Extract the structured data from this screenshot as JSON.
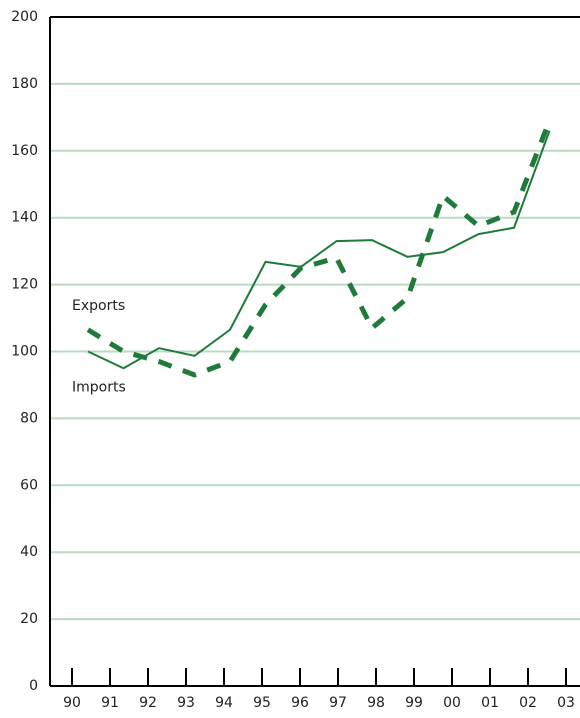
{
  "chart_data": {
    "type": "line",
    "categories": [
      "90",
      "91",
      "92",
      "93",
      "94",
      "95",
      "96",
      "97",
      "98",
      "99",
      "00",
      "01",
      "02",
      "03"
    ],
    "series": [
      {
        "name": "Exports",
        "color": "#1f7a3c",
        "style": "dashed",
        "values": [
          106.5,
          100,
          97,
          93,
          97,
          114,
          125,
          128,
          107,
          116,
          146.5,
          137.5,
          141.7,
          169
        ]
      },
      {
        "name": "Imports",
        "color": "#1f7a3c",
        "style": "solid",
        "values": [
          100,
          95,
          101,
          98.7,
          106.5,
          126.8,
          125.3,
          133,
          133.3,
          128.3,
          129.7,
          135.1,
          137,
          166
        ]
      }
    ],
    "ylim": [
      0,
      200
    ],
    "yticks": [
      0,
      20,
      40,
      60,
      80,
      100,
      120,
      140,
      160,
      180,
      200
    ],
    "grid": true,
    "grid_color": "#b8dbc2"
  }
}
